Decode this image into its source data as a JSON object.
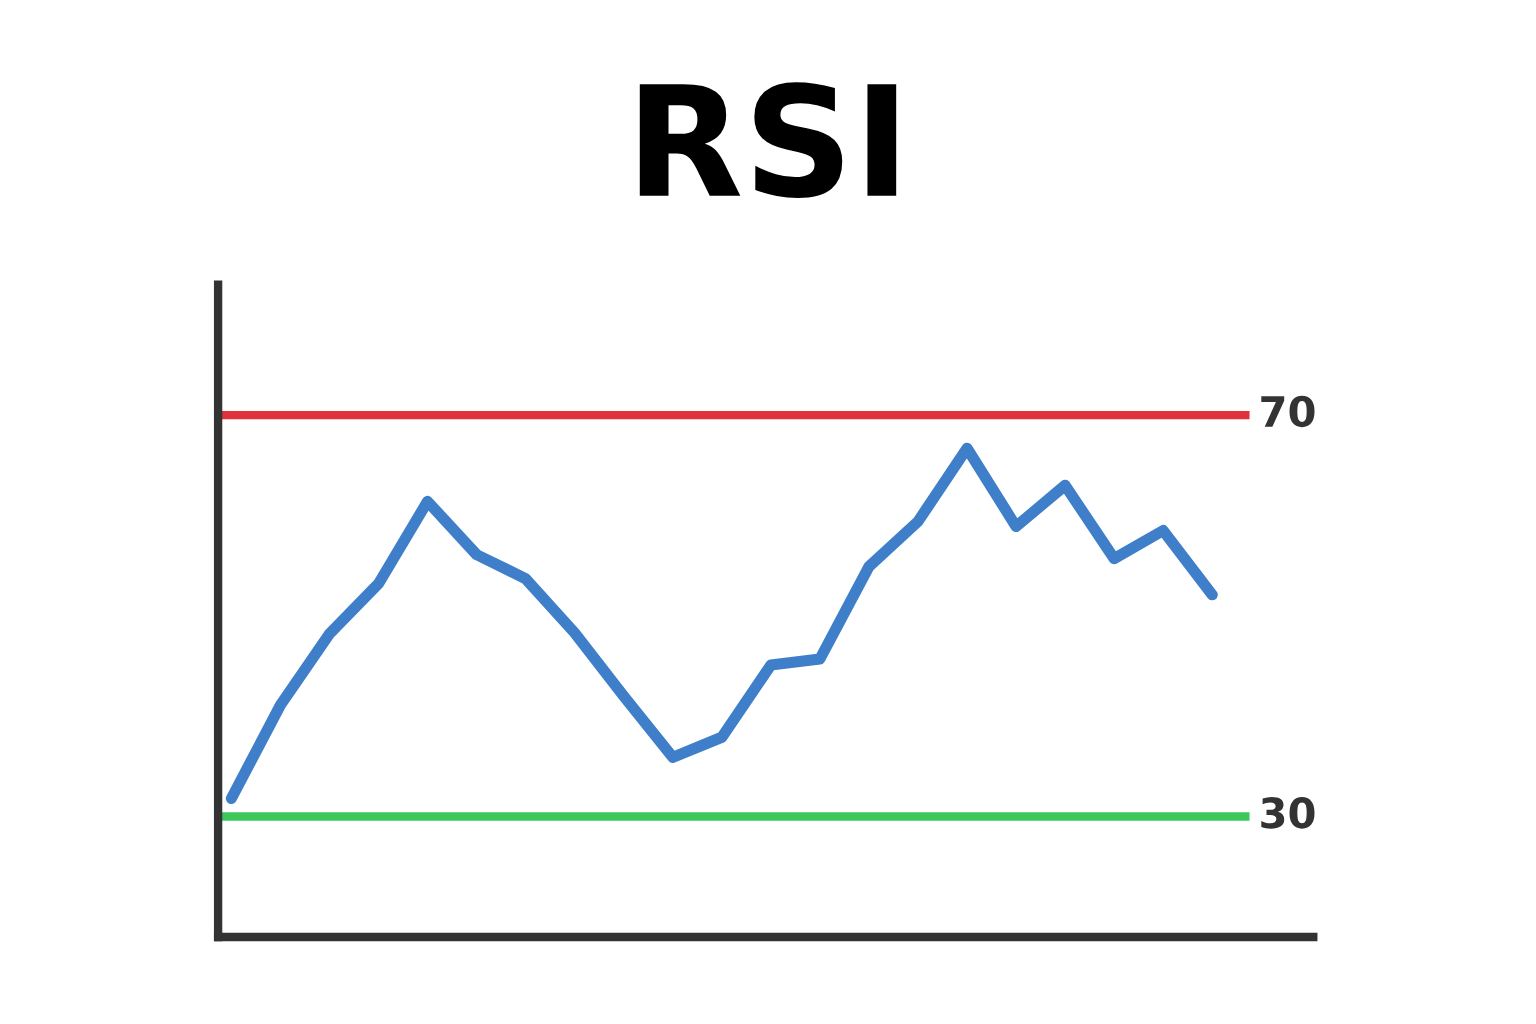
{
  "chart_data": {
    "type": "line",
    "title": "RSI",
    "categories": [
      null,
      null,
      null,
      null,
      null,
      null,
      null,
      null,
      null,
      null,
      null,
      null,
      null,
      null,
      null,
      null,
      null,
      null,
      null,
      null,
      null
    ],
    "series": [
      {
        "color": "#3f7fca",
        "values": [
          31.8,
          41.1,
          48.2,
          53.2,
          61.4,
          56.1,
          53.7,
          48.3,
          42.0,
          35.9,
          37.9,
          45.1,
          45.7,
          54.9,
          59.4,
          66.7,
          58.9,
          63.0,
          55.7,
          58.5,
          52.1
        ]
      }
    ],
    "ylim": [
      18,
      83
    ],
    "ref_lines": [
      {
        "axis": "y",
        "value": 70,
        "label": "70",
        "color": "#e0323c"
      },
      {
        "axis": "y",
        "value": 30,
        "label": "30",
        "color": "#3cc85a"
      }
    ],
    "grid": false,
    "legend": false,
    "marker": "none",
    "line_style": "solid"
  }
}
